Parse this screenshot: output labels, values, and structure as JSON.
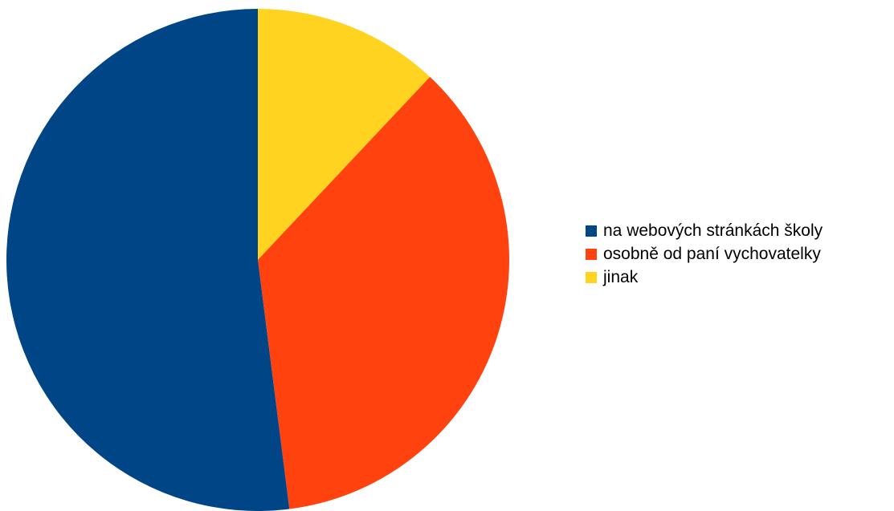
{
  "chart_data": {
    "type": "pie",
    "title": "",
    "legend_position": "right",
    "start_angle": "12 o'clock",
    "direction": "clockwise",
    "slices": [
      {
        "label": "na webových stránkách školy",
        "value": 52,
        "color": "#004586"
      },
      {
        "label": "osobně od paní vychovatelky",
        "value": 36,
        "color": "#ff420e"
      },
      {
        "label": "jinak",
        "value": 12,
        "color": "#ffd320"
      }
    ]
  }
}
